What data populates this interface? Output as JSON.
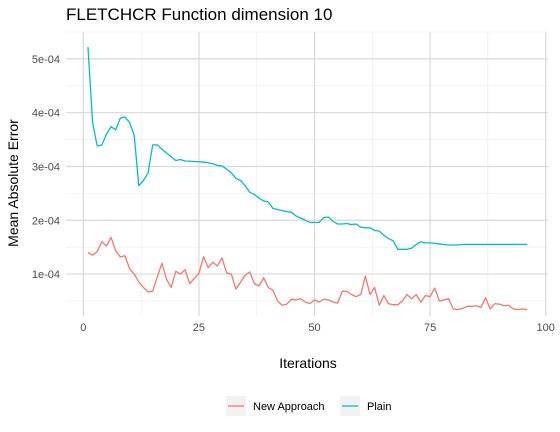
{
  "chart_data": {
    "type": "line",
    "title": "FLETCHCR Function dimension 10",
    "xlabel": "Iterations",
    "ylabel": "Mean Absolute Error",
    "xlim": [
      -3.75,
      100.5
    ],
    "ylim": [
      2.2e-05,
      0.00055
    ],
    "x_ticks": [
      0,
      25,
      50,
      75,
      100
    ],
    "x_tick_labels": [
      "0",
      "25",
      "50",
      "75",
      "100"
    ],
    "y_ticks": [
      0.0001,
      0.0002,
      0.0003,
      0.0004,
      0.0005
    ],
    "y_tick_labels": [
      "1e-04",
      "2e-04",
      "3e-04",
      "4e-04",
      "5e-04"
    ],
    "grid": true,
    "legend_position": "bottom",
    "series": [
      {
        "name": "New Approach",
        "color": "#F8766D",
        "x": [
          1,
          2,
          3,
          4,
          5,
          6,
          7,
          8,
          9,
          10,
          11,
          12,
          13,
          14,
          15,
          16,
          17,
          18,
          19,
          20,
          21,
          22,
          23,
          24,
          25,
          26,
          27,
          28,
          29,
          30,
          31,
          32,
          33,
          34,
          35,
          36,
          37,
          38,
          39,
          40,
          41,
          42,
          43,
          44,
          45,
          46,
          47,
          48,
          49,
          50,
          51,
          52,
          53,
          54,
          55,
          56,
          57,
          58,
          59,
          60,
          61,
          62,
          63,
          64,
          65,
          66,
          67,
          68,
          69,
          70,
          71,
          72,
          73,
          74,
          75,
          76,
          77,
          78,
          79,
          80,
          81,
          82,
          83,
          84,
          85,
          86,
          87,
          88,
          89,
          90,
          91,
          92,
          93,
          94,
          95,
          96
        ],
        "values": [
          0.00014,
          0.000135,
          0.000142,
          0.00016,
          0.000152,
          0.000168,
          0.000143,
          0.000132,
          0.000134,
          0.00011,
          0.0001,
          8.5e-05,
          7.5e-05,
          6.7e-05,
          6.8e-05,
          9.5e-05,
          0.00012,
          9e-05,
          7.5e-05,
          0.000105,
          0.0001,
          0.000108,
          8.2e-05,
          9.2e-05,
          0.000101,
          0.000132,
          0.000112,
          0.000122,
          0.000115,
          0.00013,
          0.000102,
          0.0001,
          7.2e-05,
          8.5e-05,
          9.8e-05,
          0.000104,
          8.2e-05,
          7.8e-05,
          9.3e-05,
          7.5e-05,
          7e-05,
          5e-05,
          4.2e-05,
          4.4e-05,
          5.3e-05,
          5.2e-05,
          5.4e-05,
          4.8e-05,
          4.5e-05,
          5.2e-05,
          4.8e-05,
          5.3e-05,
          5.2e-05,
          4.8e-05,
          4.6e-05,
          6.8e-05,
          6.8e-05,
          6.2e-05,
          5.8e-05,
          6.2e-05,
          9.6e-05,
          6.2e-05,
          7.5e-05,
          4.2e-05,
          6e-05,
          4.5e-05,
          4.3e-05,
          4.3e-05,
          5e-05,
          6.2e-05,
          5.4e-05,
          6.2e-05,
          4.8e-05,
          6e-05,
          5.8e-05,
          7.4e-05,
          5e-05,
          5.2e-05,
          5.4e-05,
          3.5e-05,
          3.4e-05,
          3.6e-05,
          4e-05,
          4e-05,
          4.1e-05,
          3.8e-05,
          5.6e-05,
          3.5e-05,
          4.5e-05,
          4.4e-05,
          4.1e-05,
          4.2e-05,
          3.5e-05,
          3.4e-05,
          3.5e-05,
          3.4e-05
        ]
      },
      {
        "name": "Plain",
        "color": "#00BFC4",
        "x": [
          1,
          2,
          3,
          4,
          5,
          6,
          7,
          8,
          9,
          10,
          11,
          12,
          13,
          14,
          15,
          16,
          17,
          18,
          19,
          20,
          21,
          22,
          23,
          24,
          25,
          26,
          27,
          28,
          29,
          30,
          31,
          32,
          33,
          34,
          35,
          36,
          37,
          38,
          39,
          40,
          41,
          42,
          43,
          44,
          45,
          46,
          47,
          48,
          49,
          50,
          51,
          52,
          53,
          54,
          55,
          56,
          57,
          58,
          59,
          60,
          61,
          62,
          63,
          64,
          65,
          66,
          67,
          68,
          69,
          70,
          71,
          72,
          73,
          74,
          75,
          76,
          77,
          78,
          79,
          80,
          81,
          82,
          83,
          84,
          85,
          86,
          87,
          88,
          89,
          90,
          91,
          92,
          93,
          94,
          95,
          96
        ],
        "values": [
          0.000522,
          0.000382,
          0.000338,
          0.00034,
          0.00036,
          0.000374,
          0.000368,
          0.00039,
          0.000392,
          0.000382,
          0.000358,
          0.000264,
          0.000274,
          0.000288,
          0.00034,
          0.00034,
          0.000332,
          0.000325,
          0.000318,
          0.000311,
          0.000313,
          0.00031,
          0.00031,
          0.000309,
          0.000309,
          0.000308,
          0.000307,
          0.000305,
          0.000302,
          0.000301,
          0.000295,
          0.000288,
          0.000278,
          0.000274,
          0.000264,
          0.000252,
          0.000248,
          0.000241,
          0.000236,
          0.000234,
          0.000222,
          0.00022,
          0.000218,
          0.000216,
          0.000215,
          0.000208,
          0.000204,
          0.0002,
          0.000196,
          0.000196,
          0.000196,
          0.000205,
          0.000206,
          0.000198,
          0.000193,
          0.000193,
          0.000194,
          0.000192,
          0.000193,
          0.000187,
          0.000186,
          0.000186,
          0.000181,
          0.00018,
          0.000172,
          0.000166,
          0.000162,
          0.000146,
          0.000146,
          0.000146,
          0.000148,
          0.000155,
          0.00016,
          0.000158,
          0.000158,
          0.000157,
          0.000156,
          0.000155,
          0.000154,
          0.000154,
          0.000154,
          0.000155,
          0.000155,
          0.000155,
          0.000155,
          0.000155,
          0.000155,
          0.000155,
          0.000155,
          0.000155,
          0.000155,
          0.000155,
          0.000155,
          0.000155,
          0.000155,
          0.000155
        ]
      }
    ]
  }
}
